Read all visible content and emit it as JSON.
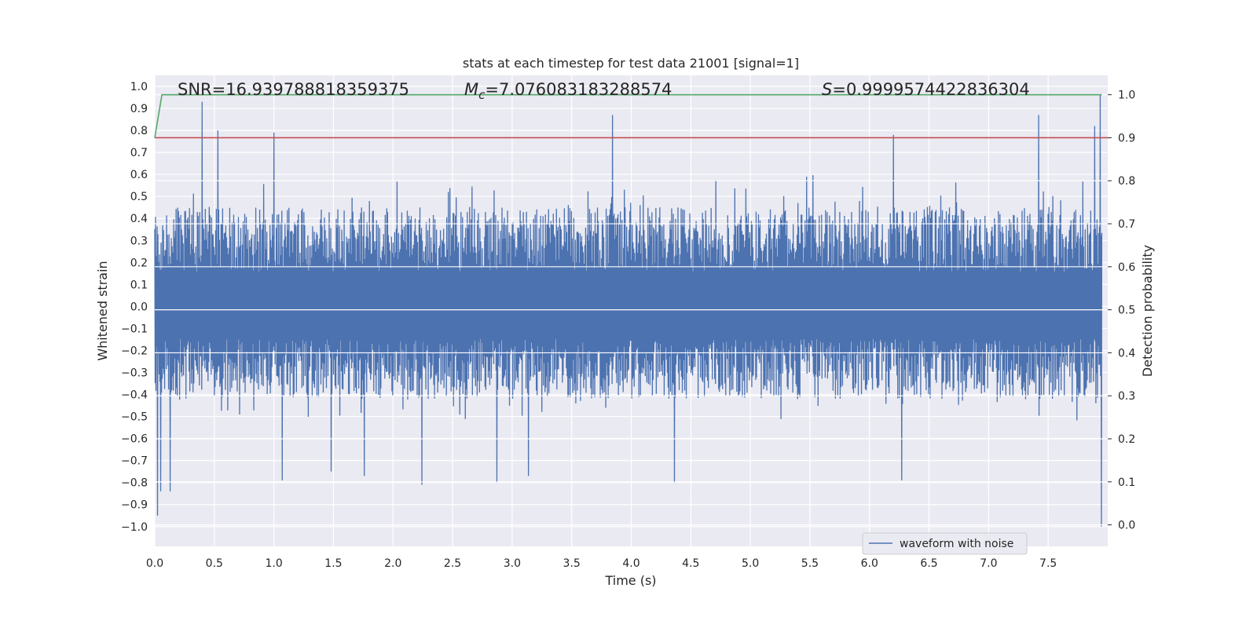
{
  "chart_data": {
    "type": "line",
    "title": "stats at each timestep for test data 21001 [signal=1]",
    "xlabel": "Time (s)",
    "ylabel_left": "Whitened strain",
    "ylabel_right": "Detection probability",
    "xlim": [
      0.0,
      8.0
    ],
    "ylim_left": [
      -1.09,
      1.05
    ],
    "ylim_right": [
      -0.05,
      1.045
    ],
    "x_ticks": [
      "0.0",
      "0.5",
      "1.0",
      "1.5",
      "2.0",
      "2.5",
      "3.0",
      "3.5",
      "4.0",
      "4.5",
      "5.0",
      "5.5",
      "6.0",
      "6.5",
      "7.0",
      "7.5"
    ],
    "y_left_ticks": [
      "1.0",
      "0.9",
      "0.8",
      "0.7",
      "0.6",
      "0.5",
      "0.4",
      "0.3",
      "0.2",
      "0.1",
      "0.0",
      "−0.1",
      "−0.2",
      "−0.3",
      "−0.4",
      "−0.5",
      "−0.6",
      "−0.7",
      "−0.8",
      "−0.9",
      "−1.0"
    ],
    "y_right_ticks": [
      "1.0",
      "0.9",
      "0.8",
      "0.7",
      "0.6",
      "0.5",
      "0.4",
      "0.3",
      "0.2",
      "0.1",
      "0.0"
    ],
    "grid": true,
    "legend_placement": "lower-right",
    "annotations": {
      "snr_label": "SNR=16.939788818359375",
      "mc_symbol": "M",
      "mc_subscript": "c",
      "mc_value": "=7.076083183288574",
      "s_symbol": "S",
      "s_value": "=0.9999574422836304"
    },
    "series": [
      {
        "name": "waveform with noise",
        "axis": "left",
        "color": "#4c72b0",
        "kind": "noise-trace",
        "t_range": [
          0.0,
          7.95
        ],
        "envelope_top": 0.45,
        "envelope_bottom": -0.42,
        "peaks": [
          [
            0.02,
            -0.95
          ],
          [
            0.05,
            -0.84
          ],
          [
            0.13,
            -0.84
          ],
          [
            0.4,
            0.93
          ],
          [
            0.53,
            0.8
          ],
          [
            1.0,
            0.79
          ],
          [
            1.07,
            -0.79
          ],
          [
            1.48,
            -0.75
          ],
          [
            1.76,
            -0.77
          ],
          [
            2.24,
            -0.81
          ],
          [
            2.87,
            -0.8
          ],
          [
            3.14,
            -0.77
          ],
          [
            3.84,
            0.87
          ],
          [
            4.36,
            -0.8
          ],
          [
            6.2,
            0.78
          ],
          [
            6.27,
            -0.79
          ],
          [
            7.42,
            0.87
          ],
          [
            7.89,
            0.82
          ],
          [
            7.94,
            0.96
          ],
          [
            7.95,
            -1.0
          ]
        ]
      },
      {
        "axis": "right",
        "color": "#55a868",
        "x": [
          0.0,
          0.06,
          7.95
        ],
        "y": [
          0.9,
          1.0,
          1.0
        ]
      },
      {
        "axis": "right",
        "color": "#c44e52",
        "x": [
          0.0,
          8.0
        ],
        "y": [
          0.9,
          0.9
        ]
      }
    ]
  },
  "colors": {
    "plot_background": "#eaeaf2",
    "grid": "#ffffff",
    "waveform": "#4c72b0",
    "probability": "#55a868",
    "threshold": "#c44e52"
  }
}
